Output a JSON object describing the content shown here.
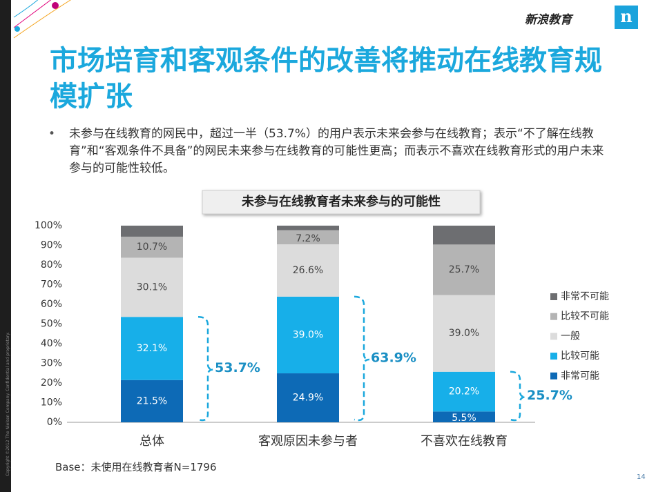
{
  "brand": "新浪教育",
  "copyright": "Copyright ©2012 The Nielsen Company. Confidential and proprietary.",
  "title": "市场培育和客观条件的改善将推动在线教育规模扩张",
  "bullet": "未参与在线教育的网民中，超过一半（53.7%）的用户表示未来会参与在线教育；表示“不了解在线教育”和“客观条件不具备”的网民未来参与在线教育的可能性更高；而表示不喜欢在线教育形式的用户未来参与的可能性较低。",
  "chart_data": {
    "type": "stacked_bar",
    "title": "未参与在线教育者未来参与的可能性",
    "categories": [
      "总体",
      "客观原因未参与者",
      "不喜欢在线教育"
    ],
    "series": [
      {
        "name": "非常可能",
        "color": "#0d6ab6",
        "values": [
          21.5,
          24.9,
          5.5
        ],
        "value_labels": [
          "21.5%",
          "24.9%",
          "5.5%"
        ]
      },
      {
        "name": "比较可能",
        "color": "#17afe9",
        "values": [
          32.1,
          39.0,
          20.2
        ],
        "value_labels": [
          "32.1%",
          "39.0%",
          "20.2%"
        ]
      },
      {
        "name": "一般",
        "color": "#dcdcdc",
        "values": [
          30.1,
          26.6,
          39.0
        ],
        "value_labels": [
          "30.1%",
          "26.6%",
          "39.0%"
        ]
      },
      {
        "name": "比较不可能",
        "color": "#b4b4b4",
        "values": [
          10.7,
          7.2,
          25.7
        ],
        "value_labels": [
          "10.7%",
          "7.2%",
          "25.7%"
        ]
      },
      {
        "name": "非常不可能",
        "color": "#6d6e71",
        "values": [
          5.6,
          2.3,
          9.6
        ]
      }
    ],
    "annotations": [
      "53.7%",
      "63.9%",
      "25.7%"
    ],
    "ylim": [
      0,
      100
    ],
    "yticks": [
      {
        "value": 0,
        "label": "0%"
      },
      {
        "value": 10,
        "label": "10%"
      },
      {
        "value": 20,
        "label": "20%"
      },
      {
        "value": 30,
        "label": "30%"
      },
      {
        "value": 40,
        "label": "40%"
      },
      {
        "value": 50,
        "label": "50%"
      },
      {
        "value": 60,
        "label": "60%"
      },
      {
        "value": 70,
        "label": "70%"
      },
      {
        "value": 80,
        "label": "80%"
      },
      {
        "value": 90,
        "label": "90%"
      },
      {
        "value": 100,
        "label": "100%"
      }
    ],
    "legend": "right"
  },
  "base_note": "Base：未使用在线教育者N=1796",
  "page_number": "14"
}
